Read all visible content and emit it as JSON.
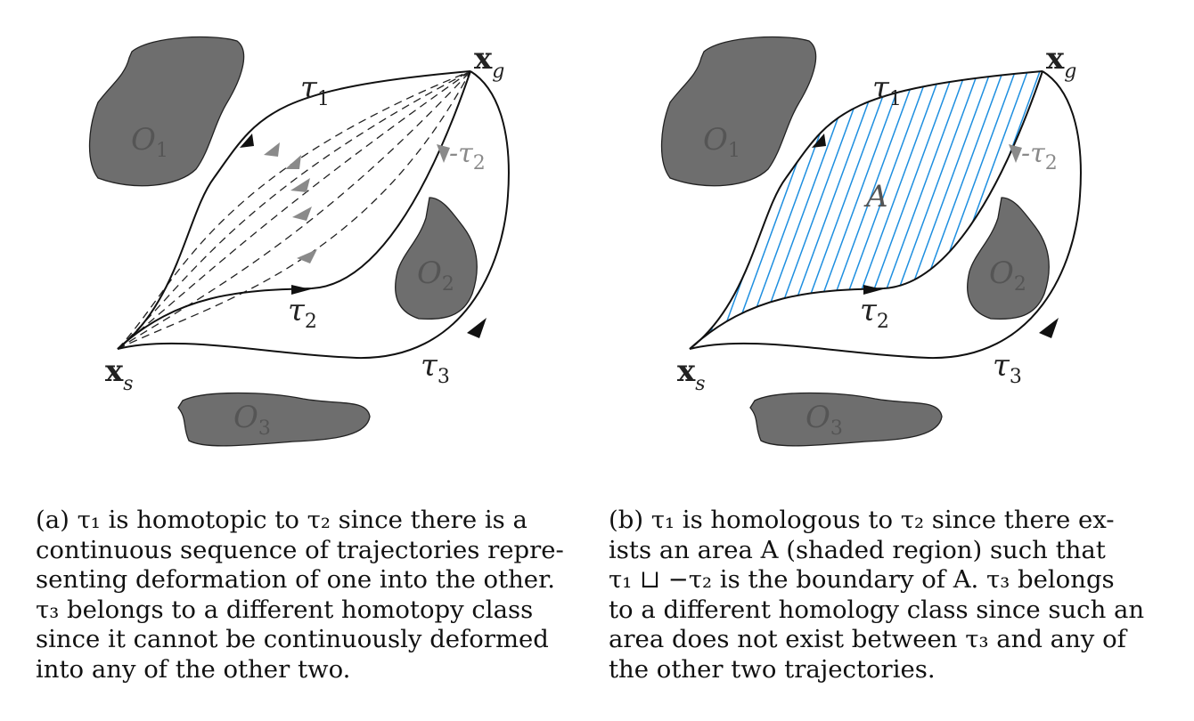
{
  "panel_a": {
    "labels": {
      "tau1": "τ",
      "tau1_sub": "1",
      "tau2": "τ",
      "tau2_sub": "2",
      "tau3": "τ",
      "tau3_sub": "3",
      "neg_tau2": "-τ",
      "neg_tau2_sub": "2",
      "xg": "x",
      "xg_sub": "g",
      "xs": "x",
      "xs_sub": "s",
      "o1": "O",
      "o1_sub": "1",
      "o2": "O",
      "o2_sub": "2",
      "o3": "O",
      "o3_sub": "3"
    },
    "caption": [
      "(a) τ₁ is homotopic to τ₂ since there is a",
      "continuous sequence of trajectories repre-",
      "senting deformation of one into the other.",
      "τ₃ belongs to a different homotopy class",
      "since it cannot be continuously deformed",
      "into any of the other two."
    ]
  },
  "panel_b": {
    "labels": {
      "tau1": "τ",
      "tau1_sub": "1",
      "tau2": "τ",
      "tau2_sub": "2",
      "tau3": "τ",
      "tau3_sub": "3",
      "neg_tau2": "-τ",
      "neg_tau2_sub": "2",
      "xg": "x",
      "xg_sub": "g",
      "xs": "x",
      "xs_sub": "s",
      "area": "A",
      "o1": "O",
      "o1_sub": "1",
      "o2": "O",
      "o2_sub": "2",
      "o3": "O",
      "o3_sub": "3"
    },
    "caption": [
      "(b) τ₁ is homologous to τ₂ since there ex-",
      "ists an area A (shaded region) such that",
      "τ₁ ⊔ −τ₂ is the boundary of A. τ₃ belongs",
      "to a different homology class since such an",
      "area does not exist between τ₃ and any of",
      "the other two trajectories."
    ]
  },
  "colors": {
    "obstacle": "#6e6e6e",
    "hatch": "#1e8fe0",
    "dashed_arrow": "#8a8a8a"
  }
}
